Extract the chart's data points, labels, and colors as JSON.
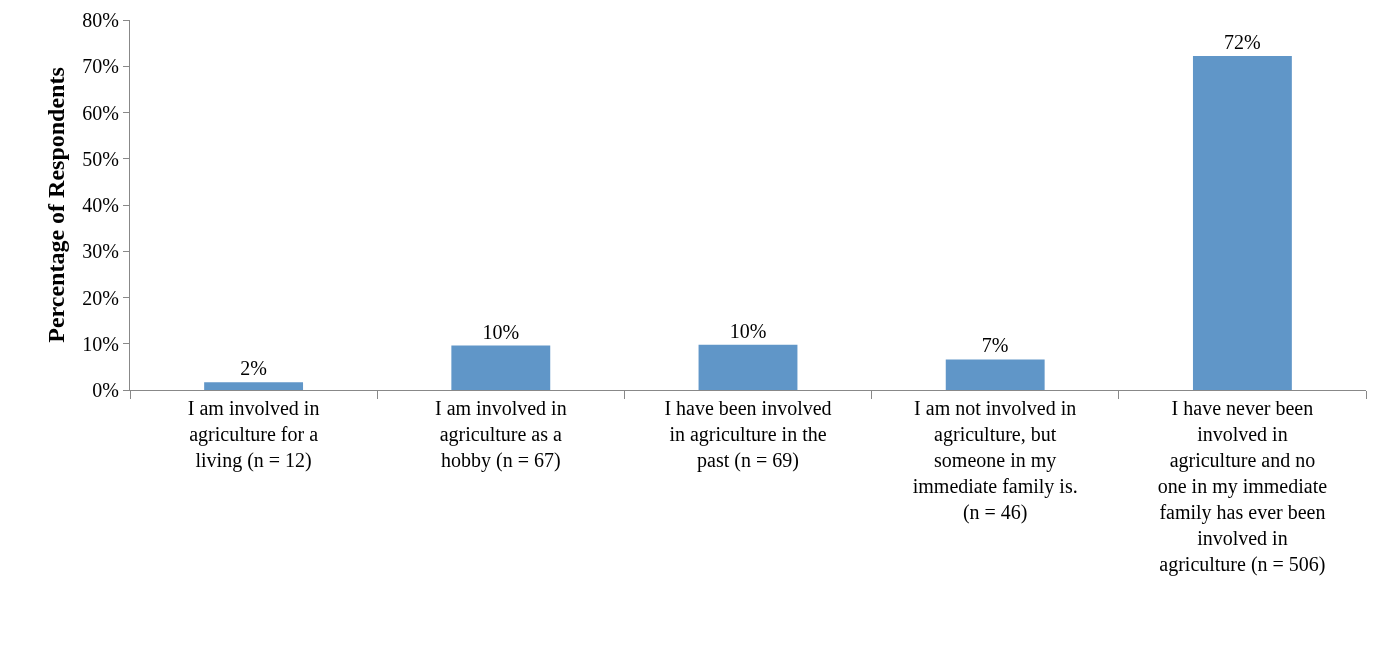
{
  "chart_data": {
    "type": "bar",
    "ylabel": "Percentage of Respondents",
    "categories": [
      "I am involved in agriculture for a living (n = 12)",
      "I am involved in agriculture as a hobby (n = 67)",
      "I have been involved in agriculture in the past (n = 69)",
      "I am not involved in agriculture, but someone in my immediate family is. (n = 46)",
      "I have never been involved in agriculture and no one in my immediate family has ever been involved in agriculture (n = 506)"
    ],
    "values": [
      1.7,
      9.6,
      9.8,
      6.6,
      72.2
    ],
    "value_labels": [
      "2%",
      "10%",
      "10%",
      "7%",
      "72%"
    ],
    "color": "#6096c8",
    "ylim": [
      0,
      80
    ],
    "yticks": [
      {
        "value": 0,
        "label": "0%"
      },
      {
        "value": 10,
        "label": "10%"
      },
      {
        "value": 20,
        "label": "20%"
      },
      {
        "value": 30,
        "label": "30%"
      },
      {
        "value": 40,
        "label": "40%"
      },
      {
        "value": 50,
        "label": "50%"
      },
      {
        "value": 60,
        "label": "60%"
      },
      {
        "value": 70,
        "label": "70%"
      },
      {
        "value": 80,
        "label": "80%"
      }
    ],
    "grid": false
  }
}
